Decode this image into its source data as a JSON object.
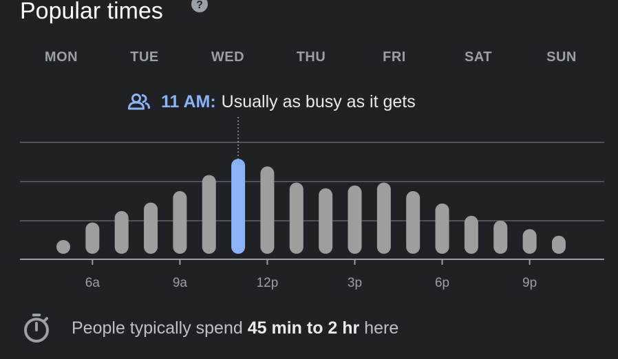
{
  "title": "Popular times",
  "help_icon": "question-circle-icon",
  "days": [
    {
      "label": "MON",
      "active": false
    },
    {
      "label": "TUE",
      "active": false
    },
    {
      "label": "WED",
      "active": false
    },
    {
      "label": "THU",
      "active": false
    },
    {
      "label": "FRI",
      "active": true
    },
    {
      "label": "SAT",
      "active": false
    },
    {
      "label": "SUN",
      "active": false
    }
  ],
  "status": {
    "icon": "people-icon",
    "time": "11 AM:",
    "description": "Usually as busy as it gets"
  },
  "colors": {
    "background": "#202124",
    "bar": "#9e9e9e",
    "highlight": "#8ab4f8",
    "gridline": "#5f6368"
  },
  "chart_data": {
    "type": "bar",
    "categories": [
      "5a",
      "6a",
      "7a",
      "8a",
      "9a",
      "10a",
      "11a",
      "12p",
      "1p",
      "2p",
      "3p",
      "4p",
      "5p",
      "6p",
      "7p",
      "8p",
      "9p",
      "10p"
    ],
    "values": [
      14,
      33,
      45,
      54,
      66,
      83,
      100,
      92,
      75,
      69,
      72,
      75,
      66,
      53,
      40,
      35,
      26,
      19
    ],
    "highlight_index": 6,
    "ylim": [
      0,
      100
    ],
    "tick_labels": [
      {
        "label": "6a",
        "index": 1
      },
      {
        "label": "9a",
        "index": 4
      },
      {
        "label": "12p",
        "index": 7
      },
      {
        "label": "3p",
        "index": 10
      },
      {
        "label": "6p",
        "index": 13
      },
      {
        "label": "9p",
        "index": 16
      }
    ],
    "grid": true
  },
  "footer": {
    "icon": "timer-icon",
    "prefix": "People typically spend ",
    "duration": "45 min to 2 hr",
    "suffix": " here"
  }
}
